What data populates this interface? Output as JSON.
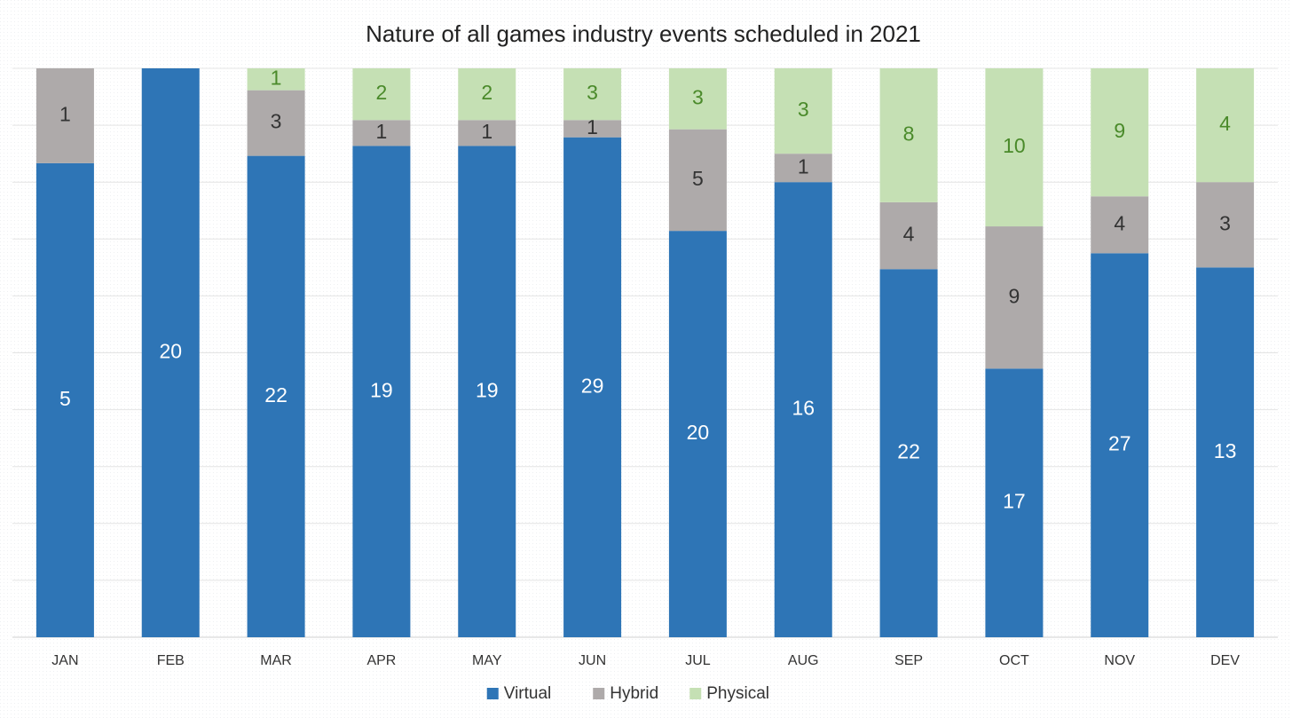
{
  "chart_data": {
    "type": "bar",
    "stacking": "percent",
    "grid": true,
    "title": "Nature of all games industry events scheduled in 2021",
    "categories": [
      "JAN",
      "FEB",
      "MAR",
      "APR",
      "MAY",
      "JUN",
      "JUL",
      "AUG",
      "SEP",
      "OCT",
      "NOV",
      "DEV"
    ],
    "series": [
      {
        "name": "Virtual",
        "color": "#2e75b6",
        "label_color": "#ffffff",
        "values": [
          5,
          20,
          22,
          19,
          19,
          29,
          20,
          16,
          22,
          17,
          27,
          13
        ]
      },
      {
        "name": "Hybrid",
        "color": "#aeaaaa",
        "label_color": "#333333",
        "values": [
          1,
          null,
          3,
          1,
          1,
          1,
          5,
          1,
          4,
          9,
          4,
          3
        ]
      },
      {
        "name": "Physical",
        "color": "#c5e0b4",
        "label_color": "#4a8a2a",
        "values": [
          null,
          null,
          1,
          2,
          2,
          3,
          3,
          3,
          8,
          10,
          9,
          4
        ]
      }
    ]
  }
}
